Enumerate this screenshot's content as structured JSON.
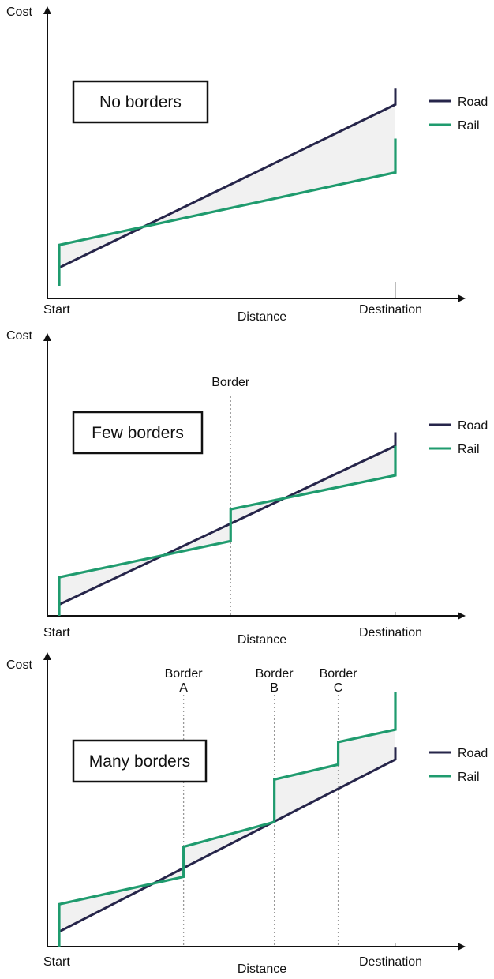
{
  "colors": {
    "road": "#26254a",
    "rail": "#1f9b6e",
    "axis": "#111111",
    "marker": "#999999",
    "fill": "#e6e6e6"
  },
  "legend": {
    "road": "Road",
    "rail": "Rail"
  },
  "chart_data": [
    {
      "type": "line",
      "title": "No borders",
      "ylabel": "Cost",
      "xlabel": "Distance",
      "x_ticks": [
        "Start",
        "Destination"
      ],
      "xlim": [
        0,
        100
      ],
      "ylim": [
        0,
        100
      ],
      "borders": [],
      "series": [
        {
          "name": "Road",
          "points": [
            [
              0,
              0
            ],
            [
              0,
              8
            ],
            [
              100,
              80
            ],
            [
              100,
              87
            ]
          ]
        },
        {
          "name": "Rail",
          "points": [
            [
              0,
              0
            ],
            [
              0,
              18
            ],
            [
              100,
              50
            ],
            [
              100,
              65
            ]
          ]
        }
      ]
    },
    {
      "type": "line",
      "title": "Few borders",
      "ylabel": "Cost",
      "xlabel": "Distance",
      "x_ticks": [
        "Start",
        "Destination"
      ],
      "xlim": [
        0,
        100
      ],
      "ylim": [
        0,
        100
      ],
      "borders": [
        {
          "x": 51,
          "label": [
            "Border"
          ]
        }
      ],
      "series": [
        {
          "name": "Road",
          "points": [
            [
              0,
              0
            ],
            [
              0,
              5
            ],
            [
              100,
              75
            ],
            [
              100,
              81
            ]
          ]
        },
        {
          "name": "Rail",
          "points": [
            [
              0,
              0
            ],
            [
              0,
              17
            ],
            [
              51,
              33
            ],
            [
              51,
              47
            ],
            [
              100,
              62
            ],
            [
              100,
              75
            ]
          ]
        }
      ]
    },
    {
      "type": "line",
      "title": "Many borders",
      "ylabel": "Cost",
      "xlabel": "Distance",
      "x_ticks": [
        "Start",
        "Destination"
      ],
      "xlim": [
        0,
        100
      ],
      "ylim": [
        0,
        100
      ],
      "borders": [
        {
          "x": 37,
          "label": [
            "Border",
            "A"
          ]
        },
        {
          "x": 64,
          "label": [
            "Border",
            "B"
          ]
        },
        {
          "x": 83,
          "label": [
            "Border",
            "C"
          ]
        }
      ],
      "series": [
        {
          "name": "Road",
          "points": [
            [
              0,
              0
            ],
            [
              0,
              6
            ],
            [
              100,
              75
            ],
            [
              100,
              80
            ]
          ]
        },
        {
          "name": "Rail",
          "points": [
            [
              0,
              0
            ],
            [
              0,
              17
            ],
            [
              37,
              28
            ],
            [
              37,
              40
            ],
            [
              64,
              50
            ],
            [
              64,
              67
            ],
            [
              83,
              73
            ],
            [
              83,
              82
            ],
            [
              100,
              87
            ],
            [
              100,
              102
            ]
          ]
        }
      ]
    }
  ]
}
